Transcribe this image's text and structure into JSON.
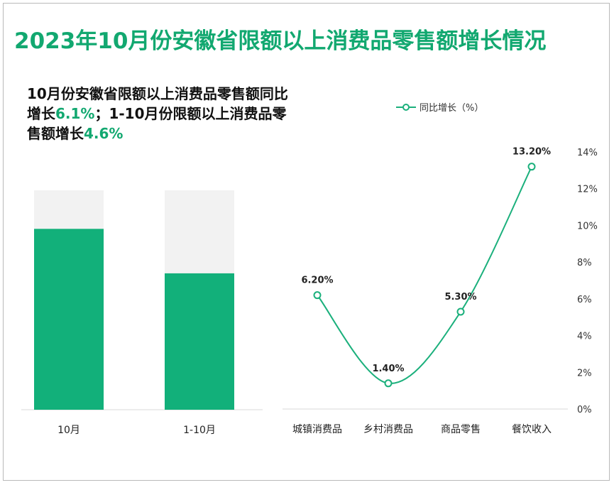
{
  "title": "2023年10月份安徽省限额以上消费品零售额增长情况",
  "summary": {
    "part1": "10月份安徽省限额以上消费品零售额同比增长",
    "value1": "6.1%",
    "part2": "；1-10月份限额以上消费品零售额增长",
    "value2": "4.6%"
  },
  "colors": {
    "accent": "#12b07a",
    "title": "#12a870",
    "bar_background": "#f2f2f2",
    "line": "#1bb07c"
  },
  "chart_data": [
    {
      "type": "bar",
      "categories": [
        "10月",
        "1-10月"
      ],
      "values": [
        6.1,
        4.6
      ],
      "note_bar_background": "full-height grey background bars behind each green bar"
    },
    {
      "type": "line",
      "legend": "同比增长（%）",
      "categories": [
        "城镇消费品",
        "乡村消费品",
        "商品零售",
        "餐饮收入"
      ],
      "values": [
        6.2,
        1.4,
        5.3,
        13.2
      ],
      "data_labels": [
        "6.20%",
        "1.40%",
        "5.30%",
        "13.20%"
      ],
      "y_axis": {
        "position": "right",
        "min": 0,
        "max": 14,
        "ticks": [
          "0%",
          "2%",
          "4%",
          "6%",
          "8%",
          "10%",
          "12%",
          "14%"
        ]
      },
      "legend_position": "top"
    }
  ]
}
